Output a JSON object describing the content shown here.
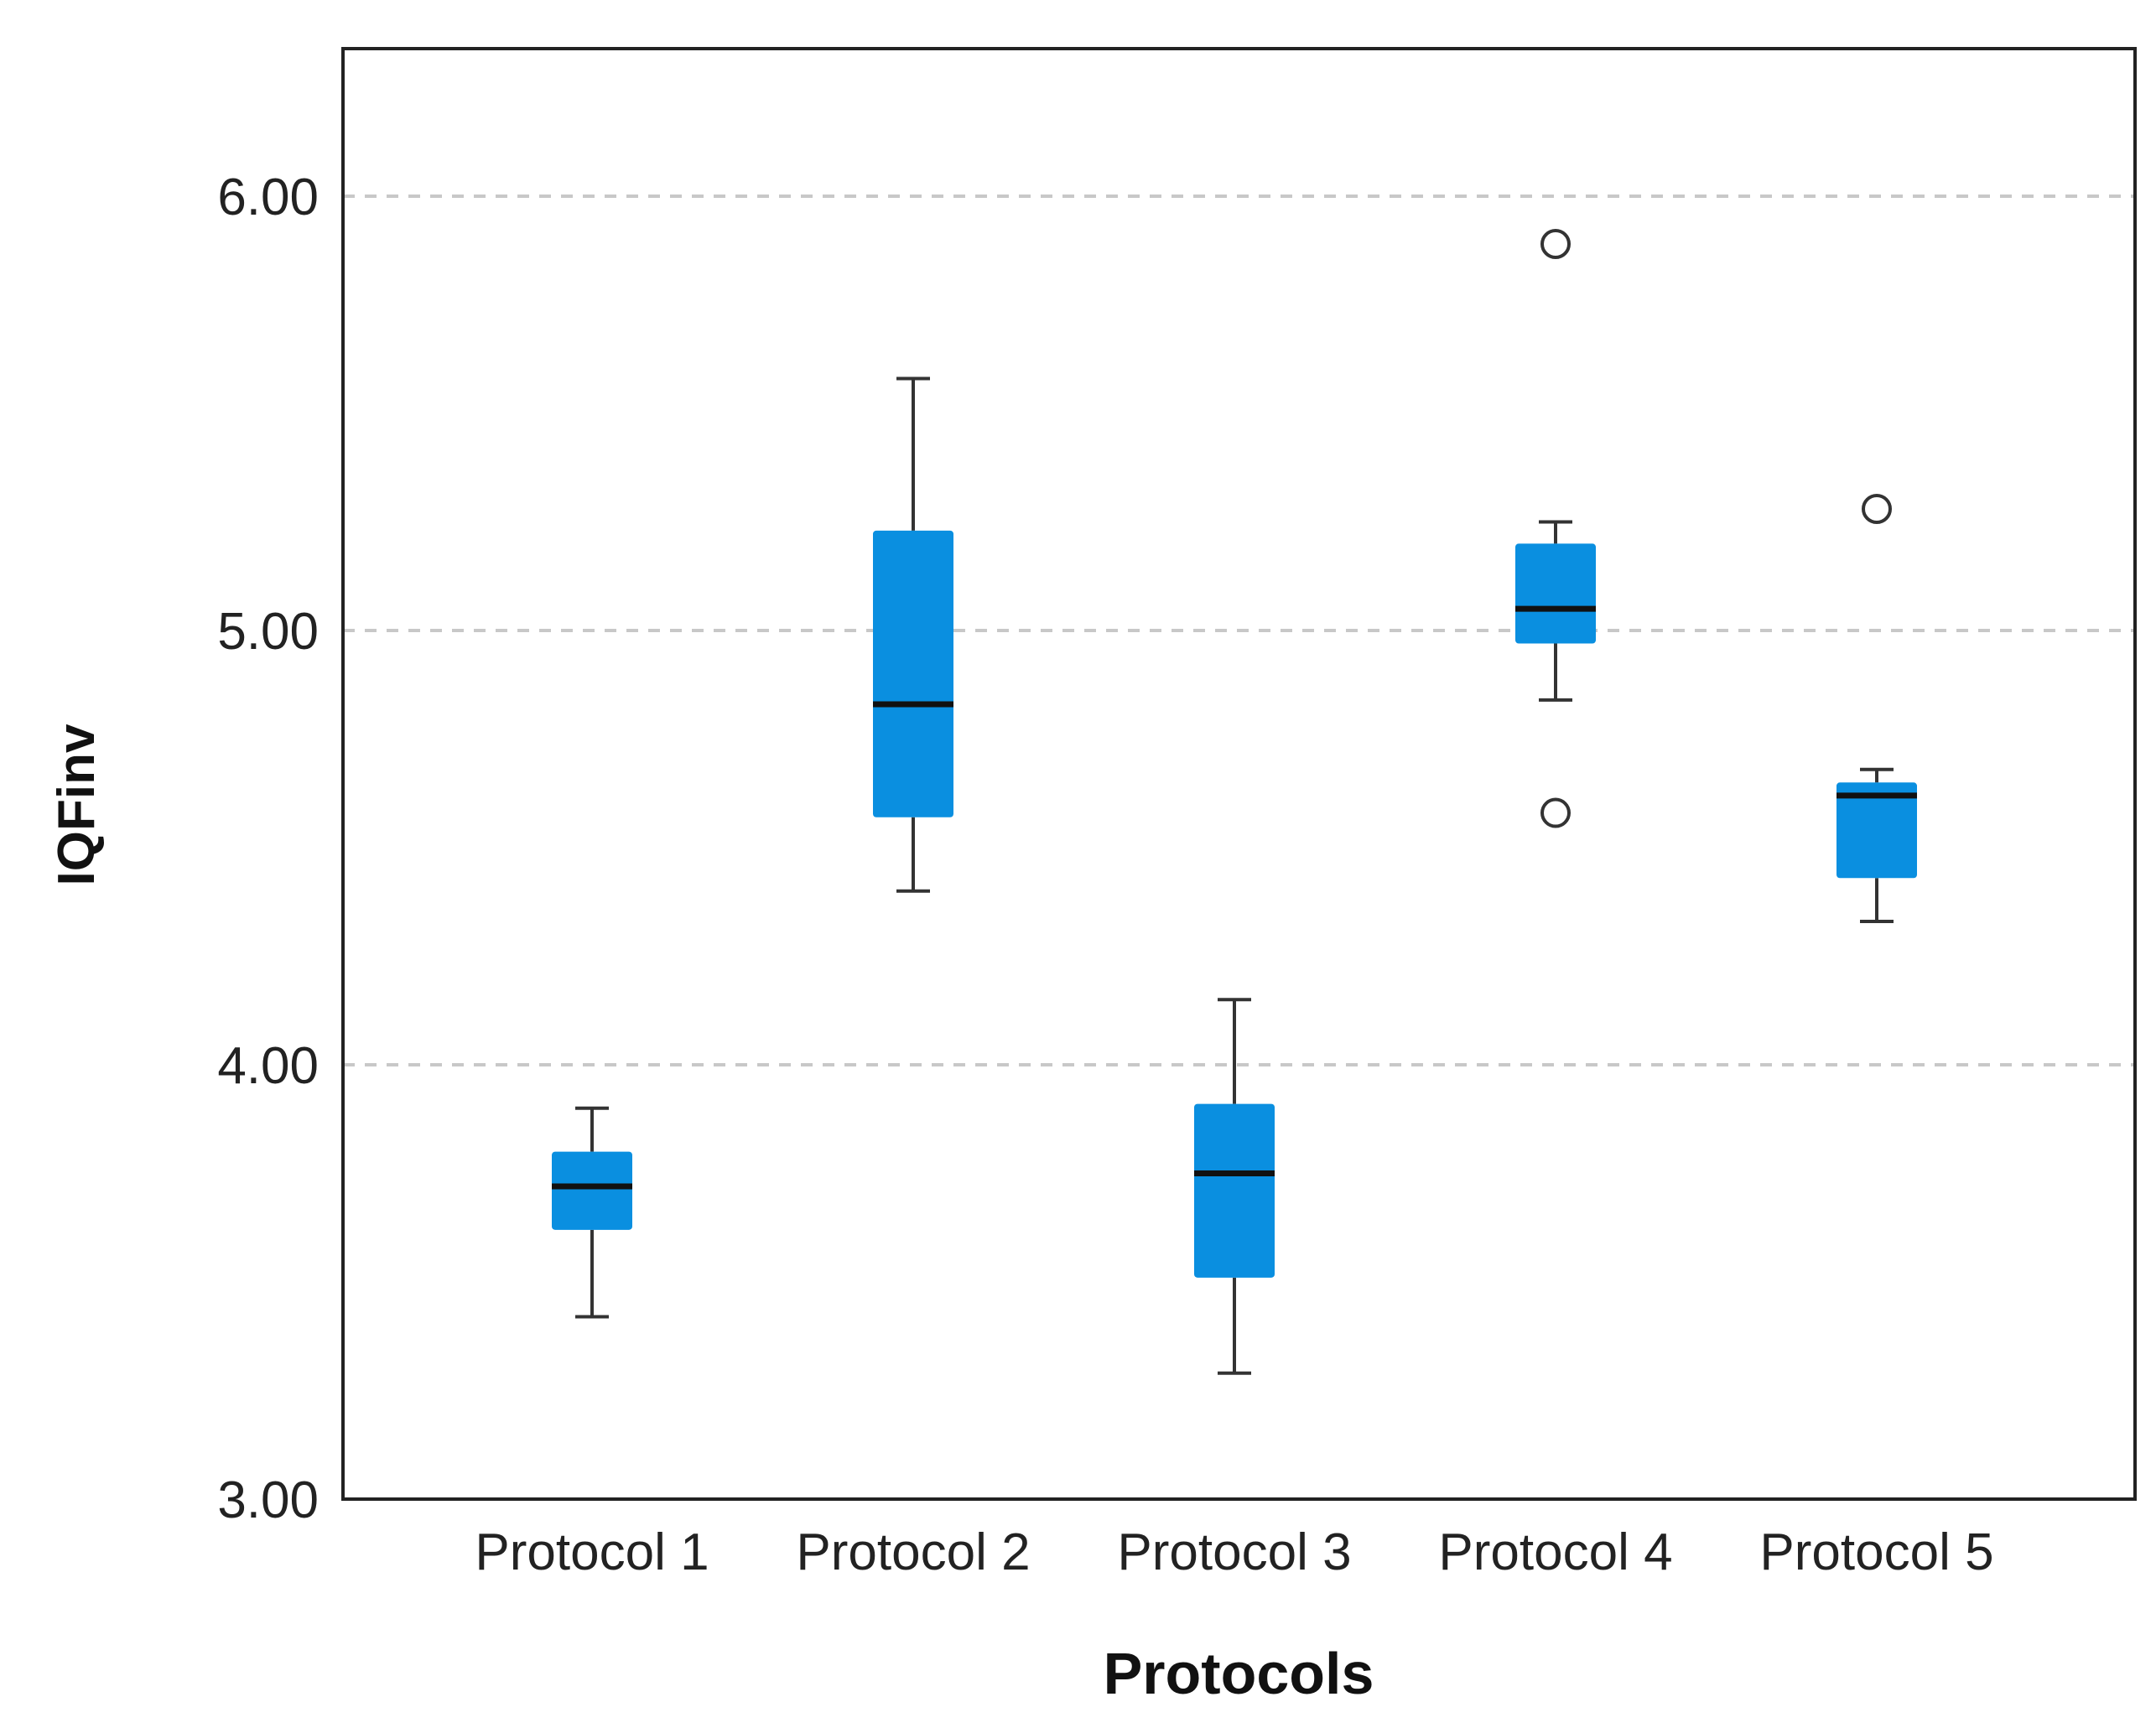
{
  "chart_data": {
    "type": "boxplot",
    "title": "",
    "xlabel": "Protocols",
    "ylabel": "IQFinv",
    "ylim": [
      3.0,
      6.33
    ],
    "yticks": [
      3.0,
      4.0,
      5.0,
      6.0
    ],
    "ytick_labels": [
      "3.00",
      "4.00",
      "5.00",
      "6.00"
    ],
    "grid": "horizontal dashed at 4.00, 5.00, 6.00",
    "colors": {
      "box_fill": "#0a8fe0",
      "median_line": "#111111",
      "whisker": "#333333",
      "grid": "#c8c8c8",
      "frame": "#222222"
    },
    "categories": [
      "Protocol 1",
      "Protocol 2",
      "Protocol 3",
      "Protocol 4",
      "Protocol 5"
    ],
    "boxes": [
      {
        "category": "Protocol 1",
        "whisker_low": 3.42,
        "q1": 3.62,
        "median": 3.72,
        "q3": 3.8,
        "whisker_high": 3.9,
        "outliers": []
      },
      {
        "category": "Protocol 2",
        "whisker_low": 4.4,
        "q1": 4.57,
        "median": 4.83,
        "q3": 5.23,
        "whisker_high": 5.58,
        "outliers": []
      },
      {
        "category": "Protocol 3",
        "whisker_low": 3.29,
        "q1": 3.51,
        "median": 3.75,
        "q3": 3.91,
        "whisker_high": 4.15,
        "outliers": []
      },
      {
        "category": "Protocol 4",
        "whisker_low": 4.84,
        "q1": 4.97,
        "median": 5.05,
        "q3": 5.2,
        "whisker_high": 5.25,
        "outliers": [
          4.58,
          5.89
        ]
      },
      {
        "category": "Protocol 5",
        "whisker_low": 4.33,
        "q1": 4.43,
        "median": 4.62,
        "q3": 4.65,
        "whisker_high": 4.68,
        "outliers": [
          5.28
        ]
      }
    ]
  }
}
